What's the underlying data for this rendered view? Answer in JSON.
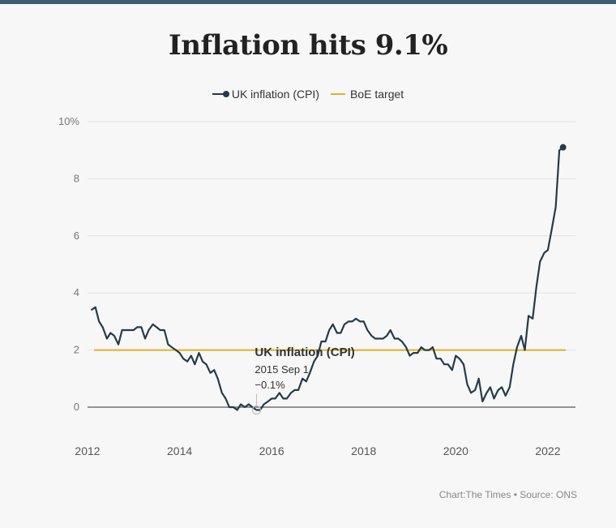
{
  "header": {
    "title": "Inflation hits 9.1%"
  },
  "legend": {
    "cpi_label": "UK inflation (CPI)",
    "target_label": "BoE target"
  },
  "colors": {
    "cpi": "#243b4a",
    "target": "#e0b023",
    "rule": "#3b5f74"
  },
  "annotation": {
    "series": "UK inflation (CPI)",
    "date": "2015 Sep 1",
    "value": "−0.1%"
  },
  "footer": {
    "source": "Chart:The Times • Source: ONS"
  },
  "chart_data": {
    "type": "line",
    "title": "Inflation hits 9.1%",
    "xlabel": "",
    "ylabel": "",
    "xlim": [
      2012,
      2022.6
    ],
    "ylim": [
      0,
      10
    ],
    "y_ticks": [
      0,
      2,
      4,
      6,
      8,
      10
    ],
    "y_tick_labels": [
      "0",
      "2",
      "4",
      "6",
      "8",
      "10%"
    ],
    "x_ticks": [
      2012,
      2014,
      2016,
      2018,
      2020,
      2022
    ],
    "x_tick_labels": [
      "2012",
      "2014",
      "2016",
      "2018",
      "2020",
      "2022"
    ],
    "target": {
      "name": "BoE target",
      "value": 2
    },
    "series": [
      {
        "name": "UK inflation (CPI)",
        "points": [
          [
            2012.08,
            3.4
          ],
          [
            2012.17,
            3.5
          ],
          [
            2012.25,
            3.0
          ],
          [
            2012.33,
            2.8
          ],
          [
            2012.42,
            2.4
          ],
          [
            2012.5,
            2.6
          ],
          [
            2012.58,
            2.5
          ],
          [
            2012.67,
            2.2
          ],
          [
            2012.75,
            2.7
          ],
          [
            2012.83,
            2.7
          ],
          [
            2012.92,
            2.7
          ],
          [
            2013.0,
            2.7
          ],
          [
            2013.08,
            2.8
          ],
          [
            2013.17,
            2.8
          ],
          [
            2013.25,
            2.4
          ],
          [
            2013.33,
            2.7
          ],
          [
            2013.42,
            2.9
          ],
          [
            2013.5,
            2.8
          ],
          [
            2013.58,
            2.7
          ],
          [
            2013.67,
            2.7
          ],
          [
            2013.75,
            2.2
          ],
          [
            2013.83,
            2.1
          ],
          [
            2013.92,
            2.0
          ],
          [
            2014.0,
            1.9
          ],
          [
            2014.08,
            1.7
          ],
          [
            2014.17,
            1.6
          ],
          [
            2014.25,
            1.8
          ],
          [
            2014.33,
            1.5
          ],
          [
            2014.42,
            1.9
          ],
          [
            2014.5,
            1.6
          ],
          [
            2014.58,
            1.5
          ],
          [
            2014.67,
            1.2
          ],
          [
            2014.75,
            1.3
          ],
          [
            2014.83,
            1.0
          ],
          [
            2014.92,
            0.5
          ],
          [
            2015.0,
            0.3
          ],
          [
            2015.08,
            0.0
          ],
          [
            2015.17,
            0.0
          ],
          [
            2015.25,
            -0.1
          ],
          [
            2015.33,
            0.1
          ],
          [
            2015.42,
            0.0
          ],
          [
            2015.5,
            0.1
          ],
          [
            2015.58,
            0.0
          ],
          [
            2015.67,
            -0.1
          ],
          [
            2015.75,
            -0.1
          ],
          [
            2015.83,
            0.1
          ],
          [
            2015.92,
            0.2
          ],
          [
            2016.0,
            0.3
          ],
          [
            2016.08,
            0.3
          ],
          [
            2016.17,
            0.5
          ],
          [
            2016.25,
            0.3
          ],
          [
            2016.33,
            0.3
          ],
          [
            2016.42,
            0.5
          ],
          [
            2016.5,
            0.6
          ],
          [
            2016.58,
            0.6
          ],
          [
            2016.67,
            1.0
          ],
          [
            2016.75,
            0.9
          ],
          [
            2016.83,
            1.2
          ],
          [
            2016.92,
            1.6
          ],
          [
            2017.0,
            1.8
          ],
          [
            2017.08,
            2.3
          ],
          [
            2017.17,
            2.3
          ],
          [
            2017.25,
            2.7
          ],
          [
            2017.33,
            2.9
          ],
          [
            2017.42,
            2.6
          ],
          [
            2017.5,
            2.6
          ],
          [
            2017.58,
            2.9
          ],
          [
            2017.67,
            3.0
          ],
          [
            2017.75,
            3.0
          ],
          [
            2017.83,
            3.1
          ],
          [
            2017.92,
            3.0
          ],
          [
            2018.0,
            3.0
          ],
          [
            2018.08,
            2.7
          ],
          [
            2018.17,
            2.5
          ],
          [
            2018.25,
            2.4
          ],
          [
            2018.33,
            2.4
          ],
          [
            2018.42,
            2.4
          ],
          [
            2018.5,
            2.5
          ],
          [
            2018.58,
            2.7
          ],
          [
            2018.67,
            2.4
          ],
          [
            2018.75,
            2.4
          ],
          [
            2018.83,
            2.3
          ],
          [
            2018.92,
            2.1
          ],
          [
            2019.0,
            1.8
          ],
          [
            2019.08,
            1.9
          ],
          [
            2019.17,
            1.9
          ],
          [
            2019.25,
            2.1
          ],
          [
            2019.33,
            2.0
          ],
          [
            2019.42,
            2.0
          ],
          [
            2019.5,
            2.1
          ],
          [
            2019.58,
            1.7
          ],
          [
            2019.67,
            1.7
          ],
          [
            2019.75,
            1.5
          ],
          [
            2019.83,
            1.5
          ],
          [
            2019.92,
            1.3
          ],
          [
            2020.0,
            1.8
          ],
          [
            2020.08,
            1.7
          ],
          [
            2020.17,
            1.5
          ],
          [
            2020.25,
            0.8
          ],
          [
            2020.33,
            0.5
          ],
          [
            2020.42,
            0.6
          ],
          [
            2020.5,
            1.0
          ],
          [
            2020.58,
            0.2
          ],
          [
            2020.67,
            0.5
          ],
          [
            2020.75,
            0.7
          ],
          [
            2020.83,
            0.3
          ],
          [
            2020.92,
            0.6
          ],
          [
            2021.0,
            0.7
          ],
          [
            2021.08,
            0.4
          ],
          [
            2021.17,
            0.7
          ],
          [
            2021.25,
            1.5
          ],
          [
            2021.33,
            2.1
          ],
          [
            2021.42,
            2.5
          ],
          [
            2021.5,
            2.0
          ],
          [
            2021.58,
            3.2
          ],
          [
            2021.67,
            3.1
          ],
          [
            2021.75,
            4.2
          ],
          [
            2021.83,
            5.1
          ],
          [
            2021.92,
            5.4
          ],
          [
            2022.0,
            5.5
          ],
          [
            2022.08,
            6.2
          ],
          [
            2022.17,
            7.0
          ],
          [
            2022.25,
            9.0
          ],
          [
            2022.33,
            9.1
          ]
        ]
      }
    ],
    "highlight": {
      "x": 2015.67,
      "y": -0.1
    }
  }
}
